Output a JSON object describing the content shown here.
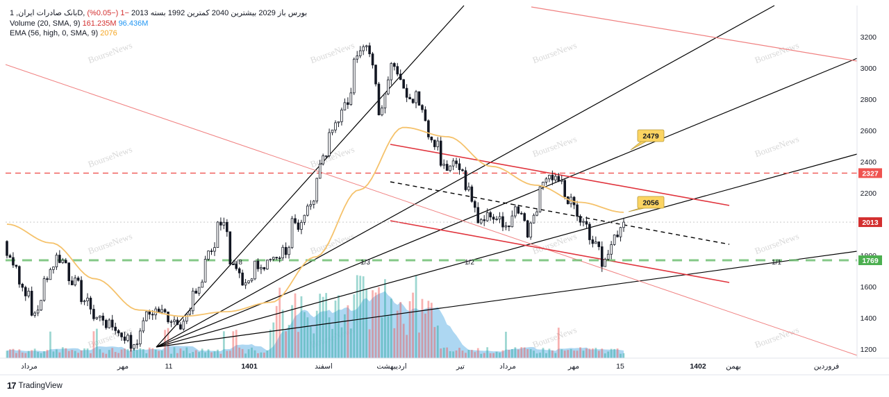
{
  "legend": {
    "symbol": "بانک صادرات ایران, 1D, بورس",
    "ohlc": "باز 2029 بیشترین 2040 کمترین 1992 بسته 2013",
    "change": "−1 (−0.05%)",
    "volume_label": "Volume (20, SMA, 9)",
    "volume_value": "161.235M",
    "volume_sma": "96.436M",
    "ema_label": "EMA (56, high, 0, SMA, 9)",
    "ema_value": "2076"
  },
  "branding": {
    "watermark": "BourseNews",
    "logo_text": "TradingView",
    "logo_glyph": "17"
  },
  "colors": {
    "up": "#26a69a",
    "down": "#ef5350",
    "price_bars": "#131722",
    "ema": "#f5c26b",
    "volume_area": "#9fd0f0",
    "fan": "#000000",
    "channel": "#e0333c",
    "resistance_dash": "#ef5350",
    "support_dash": "#66bb6a",
    "trend_light": "#f08080"
  },
  "chart_data": {
    "type": "candlestick",
    "symbol": "بانک صادرات ایران",
    "timeframe": "1D",
    "y_axis": {
      "ticks": [
        1200,
        1400,
        1600,
        1800,
        2000,
        2200,
        2400,
        2600,
        2800,
        3000,
        3200
      ],
      "ylim": [
        1130,
        3300
      ]
    },
    "x_axis": {
      "ticks": [
        "مرداد",
        "مهر",
        "11",
        "1401",
        "اسفند",
        "اردیبهشت",
        "تیر",
        "مرداد",
        "مهر",
        "15",
        "1402",
        "بهمن",
        "فروردین"
      ]
    },
    "price_path": [
      [
        1890,
        1800
      ],
      [
        1730,
        1620
      ],
      [
        1520,
        1410
      ],
      [
        1520,
        1640
      ],
      [
        1780,
        1790
      ],
      [
        1740,
        1660
      ],
      [
        1590,
        1530
      ],
      [
        1460,
        1400
      ],
      [
        1400,
        1360
      ],
      [
        1330,
        1300
      ],
      [
        1260,
        1215
      ],
      [
        1310,
        1400
      ],
      [
        1450,
        1450
      ],
      [
        1420,
        1400
      ],
      [
        1380,
        1360
      ],
      [
        1460,
        1540
      ],
      [
        1660,
        1780
      ],
      [
        1880,
        2030
      ],
      [
        1960,
        1760
      ],
      [
        1620,
        1580
      ],
      [
        1660,
        1760
      ],
      [
        1710,
        1790
      ],
      [
        1760,
        1800
      ],
      [
        1880,
        2030
      ],
      [
        1960,
        2060
      ],
      [
        2180,
        2320
      ],
      [
        2500,
        2620
      ],
      [
        2650,
        2720
      ],
      [
        2850,
        3080
      ],
      [
        3200,
        3140
      ],
      [
        2850,
        2700
      ],
      [
        3000,
        3060
      ],
      [
        2900,
        2850
      ],
      [
        2800,
        2840
      ],
      [
        2640,
        2560
      ],
      [
        2500,
        2380
      ],
      [
        2330,
        2390
      ],
      [
        2340,
        2250
      ],
      [
        2100,
        2030
      ],
      [
        2080,
        2050
      ],
      [
        2010,
        1980
      ],
      [
        2040,
        2100
      ],
      [
        1980,
        1920
      ],
      [
        2140,
        2240
      ],
      [
        2300,
        2280
      ],
      [
        2250,
        2180
      ],
      [
        2100,
        2040
      ],
      [
        1960,
        1900
      ],
      [
        1820,
        1760
      ],
      [
        1860,
        1920
      ],
      [
        2013,
        2013
      ]
    ],
    "ema_path": [
      [
        2000,
        1960
      ],
      [
        1880,
        1760
      ],
      [
        1650,
        1540
      ],
      [
        1450,
        1420
      ],
      [
        1410,
        1420
      ],
      [
        1440,
        1440
      ],
      [
        1500,
        1620
      ],
      [
        1790,
        2000
      ],
      [
        2220,
        2460
      ],
      [
        2620,
        2640
      ],
      [
        2560,
        2430
      ],
      [
        2370,
        2320
      ],
      [
        2250,
        2200
      ],
      [
        2140,
        2100
      ],
      [
        2076,
        2076
      ]
    ],
    "price_labels": [
      {
        "value": 2327,
        "label": "2327",
        "kind": "resistance"
      },
      {
        "value": 2013,
        "label": "2013",
        "kind": "last_price"
      },
      {
        "value": 1769,
        "label": "1769",
        "kind": "support"
      }
    ],
    "callouts": [
      {
        "label": "2479",
        "value": 2479
      },
      {
        "label": "2056",
        "value": 2056
      }
    ],
    "fan_labels": [
      "1/8",
      "1/3",
      "1/2",
      "1/1"
    ],
    "volume": {
      "last": "161.235M",
      "sma": "96.436M"
    }
  }
}
